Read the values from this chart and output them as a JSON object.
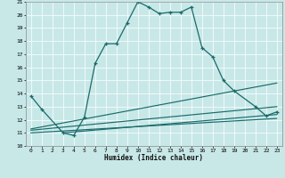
{
  "xlabel": "Humidex (Indice chaleur)",
  "xlim": [
    -0.5,
    23.5
  ],
  "ylim": [
    10,
    21
  ],
  "xticks": [
    0,
    1,
    2,
    3,
    4,
    5,
    6,
    7,
    8,
    9,
    10,
    11,
    12,
    13,
    14,
    15,
    16,
    17,
    18,
    19,
    20,
    21,
    22,
    23
  ],
  "yticks": [
    10,
    11,
    12,
    13,
    14,
    15,
    16,
    17,
    18,
    19,
    20,
    21
  ],
  "bg_color": "#c8e8e8",
  "line_color": "#1a6b6b",
  "line1_x": [
    0,
    1,
    3,
    4,
    5,
    6,
    7,
    8,
    9,
    10,
    11,
    12,
    13,
    14,
    15,
    16,
    17,
    18,
    19,
    21,
    22,
    23
  ],
  "line1_y": [
    13.8,
    12.8,
    11.0,
    10.8,
    12.2,
    16.3,
    17.8,
    17.8,
    19.4,
    21.0,
    20.6,
    20.1,
    20.2,
    20.2,
    20.6,
    17.5,
    16.8,
    15.0,
    14.2,
    13.0,
    12.3,
    12.6
  ],
  "line2_x": [
    0,
    23
  ],
  "line2_y": [
    11.0,
    12.1
  ],
  "line3_x": [
    0,
    23
  ],
  "line3_y": [
    11.2,
    13.0
  ],
  "line4_x": [
    0,
    23
  ],
  "line4_y": [
    11.3,
    14.8
  ],
  "line5_x": [
    3,
    23
  ],
  "line5_y": [
    11.0,
    12.4
  ]
}
